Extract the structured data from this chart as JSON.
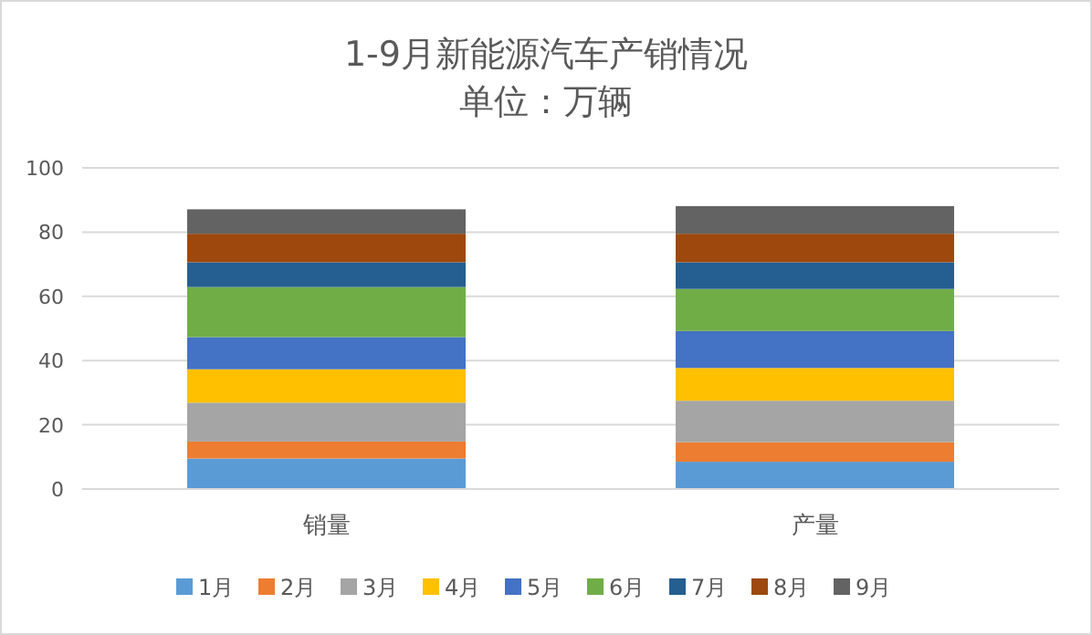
{
  "chart_data": {
    "type": "bar",
    "title": "1-9月新能源汽车产销情况",
    "subtitle": "单位：万辆",
    "categories": [
      "销量",
      "产量"
    ],
    "stacked": true,
    "ylim": [
      0,
      100
    ],
    "yticks": [
      0,
      20,
      40,
      60,
      80,
      100
    ],
    "grid": "y",
    "legend": "bottom",
    "series": [
      {
        "name": "1月",
        "color": "#5b9bd5",
        "values": [
          9.5,
          8.5
        ]
      },
      {
        "name": "2月",
        "color": "#ed7d31",
        "values": [
          5.3,
          6.1
        ]
      },
      {
        "name": "3月",
        "color": "#a5a5a5",
        "values": [
          12.1,
          12.9
        ]
      },
      {
        "name": "4月",
        "color": "#ffc000",
        "values": [
          10.4,
          10.2
        ]
      },
      {
        "name": "5月",
        "color": "#4472c4",
        "values": [
          10.0,
          11.5
        ]
      },
      {
        "name": "6月",
        "color": "#70ad47",
        "values": [
          15.6,
          13.1
        ]
      },
      {
        "name": "7月",
        "color": "#255e91",
        "values": [
          7.7,
          8.3
        ]
      },
      {
        "name": "8月",
        "color": "#9e480e",
        "values": [
          8.9,
          8.9
        ]
      },
      {
        "name": "9月",
        "color": "#636363",
        "values": [
          7.6,
          8.6
        ]
      }
    ]
  }
}
